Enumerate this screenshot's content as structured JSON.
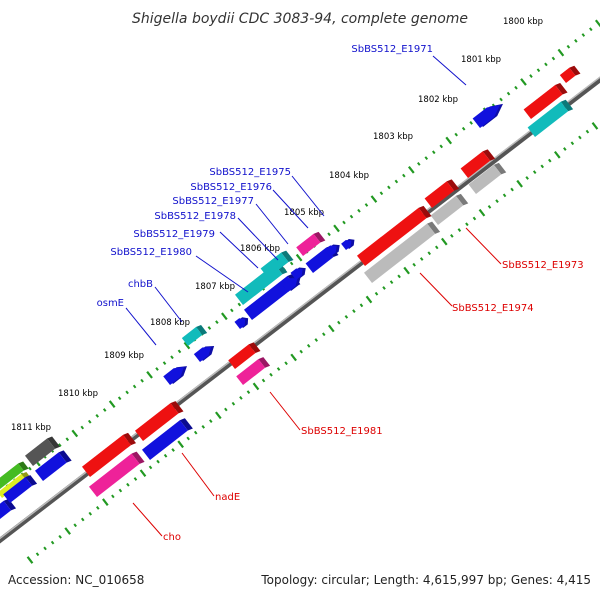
{
  "title": "Shigella boydii CDC 3083-94, complete genome",
  "kbp_labels": [
    "1800 kbp",
    "1801 kbp",
    "1802 kbp",
    "1803 kbp",
    "1804 kbp",
    "1805 kbp",
    "1806 kbp",
    "1807 kbp",
    "1808 kbp",
    "1809 kbp",
    "1810 kbp",
    "1811 kbp"
  ],
  "gene_labels": [
    "SbBS512_E1971",
    "SbBS512_E1975",
    "SbBS512_E1976",
    "SbBS512_E1977",
    "SbBS512_E1978",
    "SbBS512_E1979",
    "SbBS512_E1980",
    "chbB",
    "osmE",
    "SbBS512_E1973",
    "SbBS512_E1974",
    "SbBS512_E1981",
    "nadE",
    "cho"
  ],
  "colors": {
    "red": "#ee1111",
    "pink": "#ee2299",
    "blue": "#1111dd",
    "cyan": "#11bbbb",
    "gray": "#bbbbbb",
    "darkgray": "#555555",
    "green": "#44bb22",
    "yellow": "#ddee22",
    "backbone": "#777777",
    "tick": "#229922",
    "label_blue": "#1111cc",
    "label_red": "#dd0000"
  },
  "footer": {
    "accession": "Accession: NC_010658",
    "summary": "Topology: circular; Length: 4,615,997 bp; Genes: 4,415"
  }
}
